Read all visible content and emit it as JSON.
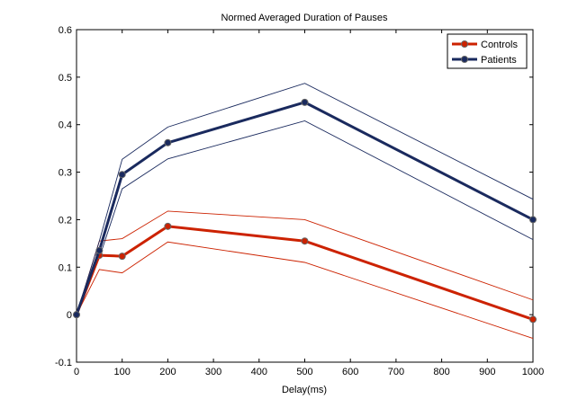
{
  "chart_data": {
    "type": "line",
    "title": "Normed Averaged Duration of Pauses",
    "xlabel": "Delay(ms)",
    "ylabel": "",
    "xlim": [
      0,
      1000
    ],
    "ylim": [
      -0.1,
      0.6
    ],
    "xticks": [
      0,
      100,
      200,
      300,
      400,
      500,
      600,
      700,
      800,
      900,
      1000
    ],
    "yticks": [
      "-0.1",
      "0",
      "0.1",
      "0.2",
      "0.3",
      "0.4",
      "0.5",
      "0.6"
    ],
    "grid": false,
    "legend_position": "top-right",
    "x": [
      0,
      50,
      100,
      200,
      500,
      1000
    ],
    "series": [
      {
        "name": "Controls",
        "color": "#cc2200",
        "values": [
          0,
          0.125,
          0.123,
          0.186,
          0.155,
          -0.01
        ],
        "upper": [
          0,
          0.155,
          0.16,
          0.218,
          0.2,
          0.031
        ],
        "lower": [
          0,
          0.095,
          0.088,
          0.153,
          0.11,
          -0.05
        ]
      },
      {
        "name": "Patients",
        "color": "#1a2a5e",
        "values": [
          0,
          0.135,
          0.295,
          0.362,
          0.447,
          0.2
        ],
        "upper": [
          0,
          0.155,
          0.327,
          0.395,
          0.487,
          0.243
        ],
        "lower": [
          0,
          0.12,
          0.265,
          0.328,
          0.408,
          0.158
        ]
      }
    ]
  }
}
